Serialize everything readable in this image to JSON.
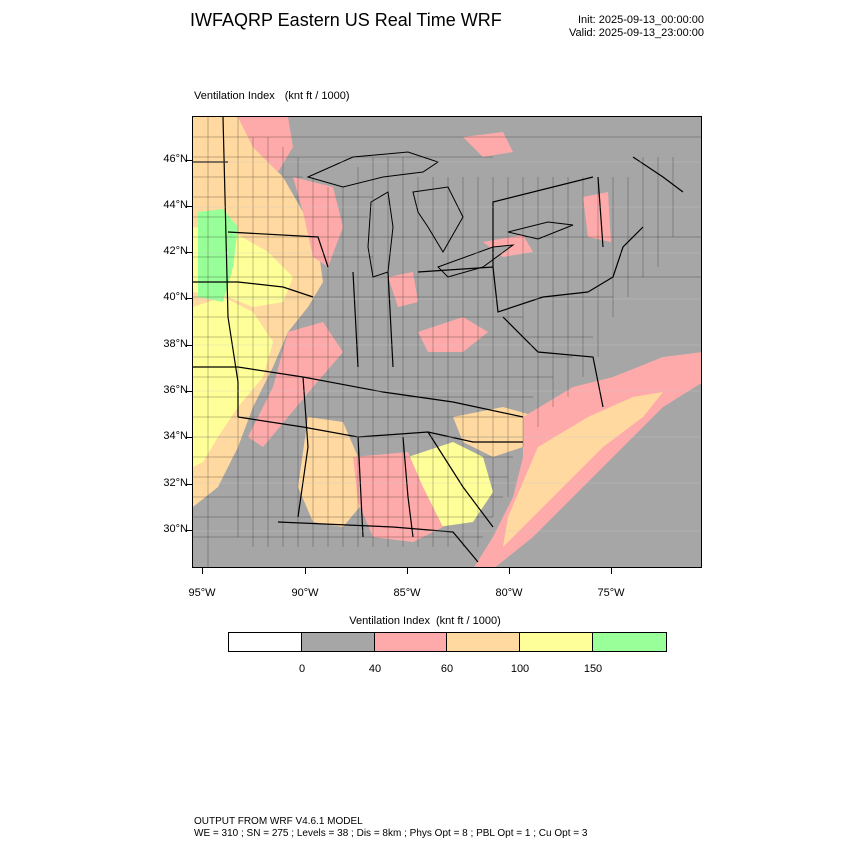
{
  "header": {
    "title": "IWFAQRP Eastern US Real Time WRF",
    "init": "Init: 2025-09-13_00:00:00",
    "valid": "Valid: 2025-09-13_23:00:00"
  },
  "map": {
    "label_name": "Ventilation Index",
    "label_units": "(knt ft / 1000)",
    "lat_labels": [
      "46°N",
      "44°N",
      "42°N",
      "40°N",
      "38°N",
      "36°N",
      "34°N",
      "32°N",
      "30°N"
    ],
    "lon_labels": [
      "95°W",
      "90°W",
      "85°W",
      "80°W",
      "75°W"
    ],
    "colors": {
      "ocean_land_default": "#a6a6a6",
      "lake": "#a6a6a6",
      "class_40_60": "#ffaaaa",
      "class_60_100": "#ffd9a0",
      "class_100_150": "#ffff99",
      "class_150_plus": "#99ff99"
    }
  },
  "colorbar": {
    "label_name": "Ventilation Index",
    "label_units": "(knt ft / 1000)",
    "colors": [
      "#ffffff",
      "#a6a6a6",
      "#ffaaaa",
      "#ffd9a0",
      "#ffff99",
      "#99ff99"
    ],
    "ticks": [
      "0",
      "40",
      "60",
      "100",
      "150"
    ]
  },
  "footer": {
    "line1": "OUTPUT FROM WRF V4.6.1 MODEL",
    "line2": "WE = 310 ; SN = 275 ; Levels = 38 ; Dis = 8km ; Phys Opt = 8 ; PBL Opt = 1 ; Cu Opt = 3"
  }
}
